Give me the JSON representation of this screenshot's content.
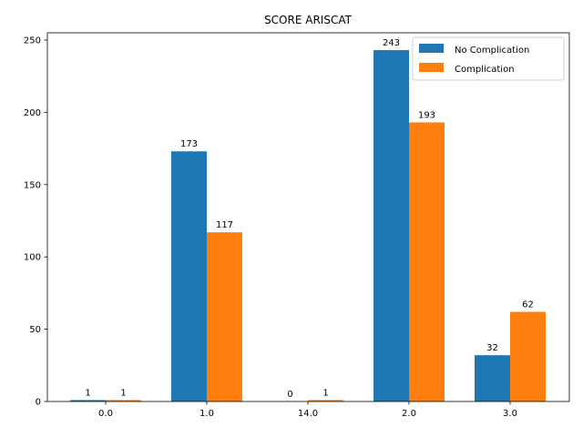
{
  "chart_data": {
    "type": "bar",
    "title": "SCORE ARISCAT",
    "xlabel": "",
    "ylabel": "",
    "categories": [
      "0.0",
      "1.0",
      "14.0",
      "2.0",
      "3.0"
    ],
    "series": [
      {
        "name": "No Complication",
        "color": "#1f77b4",
        "values": [
          1,
          173,
          0,
          243,
          32
        ]
      },
      {
        "name": "Complication",
        "color": "#ff7f0e",
        "values": [
          1,
          117,
          1,
          193,
          62
        ]
      }
    ],
    "ylim": [
      0,
      255
    ],
    "yticks": [
      0,
      50,
      100,
      150,
      200,
      250
    ],
    "legend_position": "top-right",
    "grid": false
  }
}
